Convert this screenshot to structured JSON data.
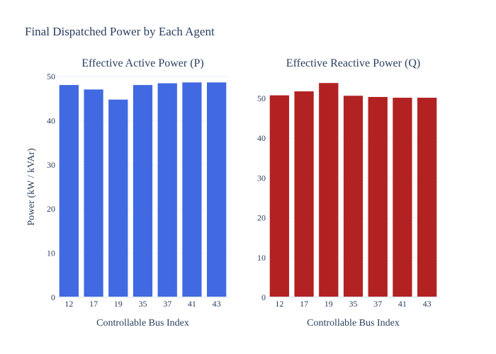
{
  "title": "Final Dispatched Power by Each Agent",
  "chart_data": [
    {
      "type": "bar",
      "title": "Effective Active Power (P)",
      "xlabel": "Controllable Bus Index",
      "ylabel": "Power (kW / kVAr)",
      "categories": [
        "12",
        "17",
        "19",
        "35",
        "37",
        "41",
        "43"
      ],
      "values": [
        48.1,
        47.1,
        44.8,
        48.1,
        48.5,
        48.7,
        48.7
      ],
      "ylim": [
        0,
        50
      ],
      "yticks": [
        0,
        10,
        20,
        30,
        40,
        50
      ],
      "color": "#4169e1",
      "grid": true
    },
    {
      "type": "bar",
      "title": "Effective Reactive Power (Q)",
      "xlabel": "Controllable Bus Index",
      "ylabel": "",
      "categories": [
        "12",
        "17",
        "19",
        "35",
        "37",
        "41",
        "43"
      ],
      "values": [
        50.8,
        51.8,
        53.9,
        50.7,
        50.4,
        50.2,
        50.2
      ],
      "ylim": [
        0,
        55.5
      ],
      "yticks": [
        0,
        10,
        20,
        30,
        40,
        50
      ],
      "color": "#b22222",
      "grid": true
    }
  ]
}
